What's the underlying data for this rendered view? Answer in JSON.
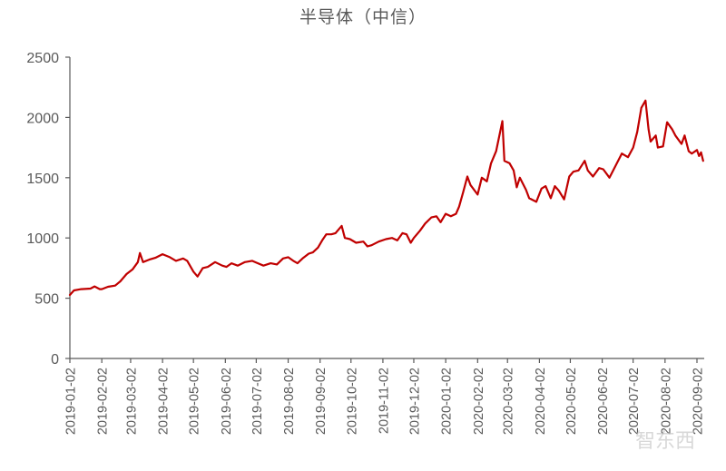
{
  "chart_data": {
    "type": "line",
    "title": "半导体（中信）",
    "xlabel": "",
    "ylabel": "",
    "ylim": [
      0,
      2500
    ],
    "yticks": [
      0,
      500,
      1000,
      1500,
      2000,
      2500
    ],
    "xticks": [
      "2019-01-02",
      "2019-02-02",
      "2019-03-02",
      "2019-04-02",
      "2019-05-02",
      "2019-06-02",
      "2019-07-02",
      "2019-08-02",
      "2019-09-02",
      "2019-10-02",
      "2019-11-02",
      "2019-12-02",
      "2020-01-02",
      "2020-02-02",
      "2020-03-02",
      "2020-04-02",
      "2020-05-02",
      "2020-06-02",
      "2020-07-02",
      "2020-08-02",
      "2020-09-02"
    ],
    "xrange": [
      "2019-01-02",
      "2020-09-02"
    ],
    "grid": false,
    "legend": "none",
    "line_color": "#C00000",
    "series": [
      {
        "name": "半导体（中信）",
        "points": [
          [
            "2019-01-02",
            527
          ],
          [
            "2019-01-06",
            565
          ],
          [
            "2019-01-13",
            575
          ],
          [
            "2019-01-22",
            580
          ],
          [
            "2019-01-26",
            598
          ],
          [
            "2019-01-31",
            575
          ],
          [
            "2019-02-02",
            575
          ],
          [
            "2019-02-08",
            595
          ],
          [
            "2019-02-15",
            605
          ],
          [
            "2019-02-20",
            640
          ],
          [
            "2019-02-26",
            700
          ],
          [
            "2019-03-04",
            740
          ],
          [
            "2019-03-09",
            800
          ],
          [
            "2019-03-11",
            875
          ],
          [
            "2019-03-14",
            800
          ],
          [
            "2019-03-20",
            820
          ],
          [
            "2019-03-26",
            835
          ],
          [
            "2019-04-02",
            865
          ],
          [
            "2019-04-09",
            840
          ],
          [
            "2019-04-15",
            810
          ],
          [
            "2019-04-22",
            830
          ],
          [
            "2019-04-26",
            810
          ],
          [
            "2019-05-02",
            720
          ],
          [
            "2019-05-06",
            680
          ],
          [
            "2019-05-11",
            750
          ],
          [
            "2019-05-16",
            760
          ],
          [
            "2019-05-23",
            800
          ],
          [
            "2019-05-30",
            770
          ],
          [
            "2019-06-03",
            760
          ],
          [
            "2019-06-08",
            790
          ],
          [
            "2019-06-14",
            770
          ],
          [
            "2019-06-21",
            800
          ],
          [
            "2019-06-28",
            810
          ],
          [
            "2019-07-02",
            795
          ],
          [
            "2019-07-09",
            770
          ],
          [
            "2019-07-16",
            790
          ],
          [
            "2019-07-22",
            780
          ],
          [
            "2019-07-28",
            830
          ],
          [
            "2019-08-02",
            840
          ],
          [
            "2019-08-07",
            810
          ],
          [
            "2019-08-11",
            790
          ],
          [
            "2019-08-16",
            830
          ],
          [
            "2019-08-22",
            870
          ],
          [
            "2019-08-26",
            880
          ],
          [
            "2019-08-31",
            920
          ],
          [
            "2019-09-04",
            980
          ],
          [
            "2019-09-08",
            1030
          ],
          [
            "2019-09-13",
            1030
          ],
          [
            "2019-09-17",
            1040
          ],
          [
            "2019-09-23",
            1100
          ],
          [
            "2019-09-26",
            1000
          ],
          [
            "2019-10-01",
            990
          ],
          [
            "2019-10-07",
            960
          ],
          [
            "2019-10-14",
            970
          ],
          [
            "2019-10-18",
            930
          ],
          [
            "2019-10-22",
            940
          ],
          [
            "2019-10-29",
            970
          ],
          [
            "2019-11-05",
            990
          ],
          [
            "2019-11-11",
            1000
          ],
          [
            "2019-11-16",
            980
          ],
          [
            "2019-11-21",
            1040
          ],
          [
            "2019-11-25",
            1030
          ],
          [
            "2019-11-29",
            960
          ],
          [
            "2019-12-02",
            1000
          ],
          [
            "2019-12-08",
            1060
          ],
          [
            "2019-12-13",
            1120
          ],
          [
            "2019-12-19",
            1170
          ],
          [
            "2019-12-24",
            1180
          ],
          [
            "2019-12-28",
            1130
          ],
          [
            "2020-01-02",
            1200
          ],
          [
            "2020-01-07",
            1180
          ],
          [
            "2020-01-12",
            1200
          ],
          [
            "2020-01-15",
            1260
          ],
          [
            "2020-01-19",
            1380
          ],
          [
            "2020-01-23",
            1510
          ],
          [
            "2020-01-26",
            1440
          ],
          [
            "2020-02-02",
            1360
          ],
          [
            "2020-02-06",
            1500
          ],
          [
            "2020-02-11",
            1470
          ],
          [
            "2020-02-15",
            1620
          ],
          [
            "2020-02-20",
            1720
          ],
          [
            "2020-02-26",
            1970
          ],
          [
            "2020-02-28",
            1640
          ],
          [
            "2020-03-04",
            1620
          ],
          [
            "2020-03-08",
            1560
          ],
          [
            "2020-03-11",
            1420
          ],
          [
            "2020-03-14",
            1500
          ],
          [
            "2020-03-20",
            1400
          ],
          [
            "2020-03-23",
            1330
          ],
          [
            "2020-03-30",
            1300
          ],
          [
            "2020-04-04",
            1410
          ],
          [
            "2020-04-08",
            1430
          ],
          [
            "2020-04-13",
            1330
          ],
          [
            "2020-04-17",
            1430
          ],
          [
            "2020-04-21",
            1390
          ],
          [
            "2020-04-26",
            1320
          ],
          [
            "2020-05-01",
            1510
          ],
          [
            "2020-05-05",
            1550
          ],
          [
            "2020-05-10",
            1560
          ],
          [
            "2020-05-16",
            1640
          ],
          [
            "2020-05-19",
            1560
          ],
          [
            "2020-05-24",
            1510
          ],
          [
            "2020-05-30",
            1580
          ],
          [
            "2020-06-03",
            1570
          ],
          [
            "2020-06-09",
            1500
          ],
          [
            "2020-06-15",
            1600
          ],
          [
            "2020-06-21",
            1700
          ],
          [
            "2020-06-27",
            1670
          ],
          [
            "2020-07-02",
            1750
          ],
          [
            "2020-07-06",
            1880
          ],
          [
            "2020-07-10",
            2080
          ],
          [
            "2020-07-14",
            2140
          ],
          [
            "2020-07-17",
            1900
          ],
          [
            "2020-07-19",
            1800
          ],
          [
            "2020-07-24",
            1850
          ],
          [
            "2020-07-26",
            1750
          ],
          [
            "2020-07-31",
            1760
          ],
          [
            "2020-08-04",
            1960
          ],
          [
            "2020-08-09",
            1900
          ],
          [
            "2020-08-12",
            1850
          ],
          [
            "2020-08-18",
            1780
          ],
          [
            "2020-08-21",
            1850
          ],
          [
            "2020-08-25",
            1720
          ],
          [
            "2020-08-28",
            1700
          ],
          [
            "2020-09-02",
            1730
          ],
          [
            "2020-09-04",
            1680
          ],
          [
            "2020-09-06",
            1710
          ],
          [
            "2020-09-08",
            1640
          ]
        ]
      }
    ]
  },
  "watermark": {
    "text": "智东西"
  }
}
